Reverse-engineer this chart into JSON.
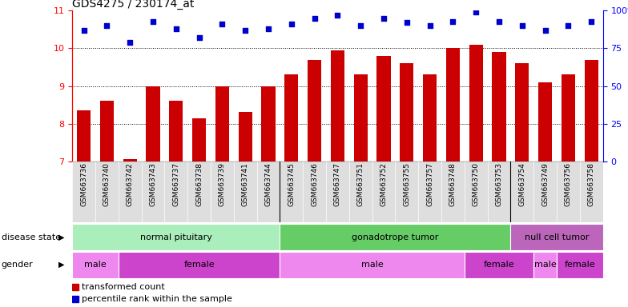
{
  "title": "GDS4275 / 230174_at",
  "samples": [
    "GSM663736",
    "GSM663740",
    "GSM663742",
    "GSM663743",
    "GSM663737",
    "GSM663738",
    "GSM663739",
    "GSM663741",
    "GSM663744",
    "GSM663745",
    "GSM663746",
    "GSM663747",
    "GSM663751",
    "GSM663752",
    "GSM663755",
    "GSM663757",
    "GSM663748",
    "GSM663750",
    "GSM663753",
    "GSM663754",
    "GSM663749",
    "GSM663756",
    "GSM663758"
  ],
  "bar_values": [
    8.35,
    8.6,
    7.05,
    9.0,
    8.6,
    8.15,
    9.0,
    8.3,
    9.0,
    9.3,
    9.7,
    9.95,
    9.3,
    9.8,
    9.6,
    9.3,
    10.0,
    10.1,
    9.9,
    9.6,
    9.1,
    9.3,
    9.7
  ],
  "blue_values": [
    87,
    90,
    79,
    93,
    88,
    82,
    91,
    87,
    88,
    91,
    95,
    97,
    90,
    95,
    92,
    90,
    93,
    99,
    93,
    90,
    87,
    90,
    93
  ],
  "bar_color": "#CC0000",
  "dot_color": "#0000CC",
  "ylim_left": [
    7,
    11
  ],
  "ylim_right": [
    0,
    100
  ],
  "yticks_left": [
    7,
    8,
    9,
    10,
    11
  ],
  "yticks_right": [
    0,
    25,
    50,
    75,
    100
  ],
  "disease_state_groups": [
    {
      "label": "normal pituitary",
      "start": 0,
      "end": 9,
      "color": "#AAEEBB"
    },
    {
      "label": "gonadotrope tumor",
      "start": 9,
      "end": 19,
      "color": "#66CC66"
    },
    {
      "label": "null cell tumor",
      "start": 19,
      "end": 23,
      "color": "#BB66BB"
    }
  ],
  "gender_groups": [
    {
      "label": "male",
      "start": 0,
      "end": 2,
      "color": "#EE88EE"
    },
    {
      "label": "female",
      "start": 2,
      "end": 9,
      "color": "#CC44CC"
    },
    {
      "label": "male",
      "start": 9,
      "end": 17,
      "color": "#EE88EE"
    },
    {
      "label": "female",
      "start": 17,
      "end": 20,
      "color": "#CC44CC"
    },
    {
      "label": "male",
      "start": 20,
      "end": 21,
      "color": "#EE88EE"
    },
    {
      "label": "female",
      "start": 21,
      "end": 23,
      "color": "#CC44CC"
    }
  ],
  "bar_width": 0.6,
  "fig_width": 7.84,
  "fig_height": 3.84,
  "dpi": 100
}
